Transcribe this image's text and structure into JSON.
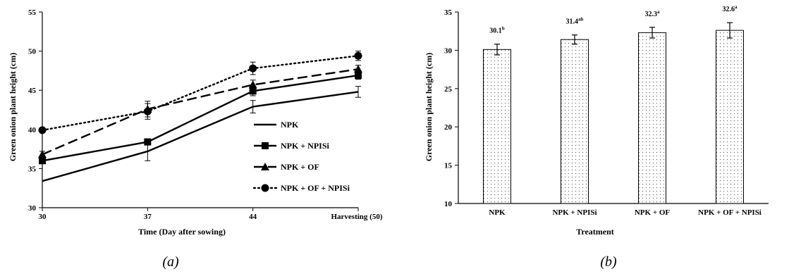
{
  "chart_data": [
    {
      "type": "line",
      "panel_label": "(a)",
      "xlabel": "Time (Day after sowing)",
      "ylabel": "Green onion plant height (cm)",
      "x_categories": [
        "30",
        "37",
        "44",
        "Harvesting (50)"
      ],
      "ylim": [
        30,
        55
      ],
      "yticks": [
        "30",
        "35",
        "40",
        "45",
        "50",
        "55"
      ],
      "legend_position": "right",
      "series": [
        {
          "name": "NPK",
          "marker": "none",
          "dash": "solid",
          "values": [
            33.4,
            37.2,
            42.9,
            44.8
          ],
          "errors": [
            0,
            1.2,
            0.8,
            0.7
          ]
        },
        {
          "name": "NPK + NPISi",
          "marker": "square",
          "dash": "solid",
          "values": [
            36.0,
            38.4,
            44.9,
            46.9
          ],
          "errors": [
            0.3,
            0.4,
            0.6,
            0.5
          ]
        },
        {
          "name": "NPK + OF",
          "marker": "triangle",
          "dash": "dashed",
          "values": [
            36.8,
            42.6,
            45.7,
            47.7
          ],
          "errors": [
            0.4,
            1.0,
            0.6,
            0.5
          ]
        },
        {
          "name": "NPK + OF + NPISi",
          "marker": "circle",
          "dash": "dotted",
          "values": [
            39.9,
            42.3,
            47.8,
            49.4
          ],
          "errors": [
            0.3,
            1.0,
            0.8,
            0.6
          ]
        }
      ]
    },
    {
      "type": "bar",
      "panel_label": "(b)",
      "xlabel": "Treatment",
      "ylabel": "Green onion plant height (cm)",
      "categories": [
        "NPK",
        "NPK + NPISi",
        "NPK + OF",
        "NPK + OF + NPISi"
      ],
      "values": [
        30.1,
        31.4,
        32.3,
        32.6
      ],
      "errors": [
        0.7,
        0.6,
        0.7,
        1.0
      ],
      "value_labels": [
        "30.1",
        "31.4",
        "32.3",
        "32.6"
      ],
      "value_superscripts": [
        "b",
        "ab",
        "a",
        "a"
      ],
      "ylim": [
        10,
        35
      ],
      "yticks": [
        "10",
        "15",
        "20",
        "25",
        "30",
        "35"
      ]
    }
  ]
}
